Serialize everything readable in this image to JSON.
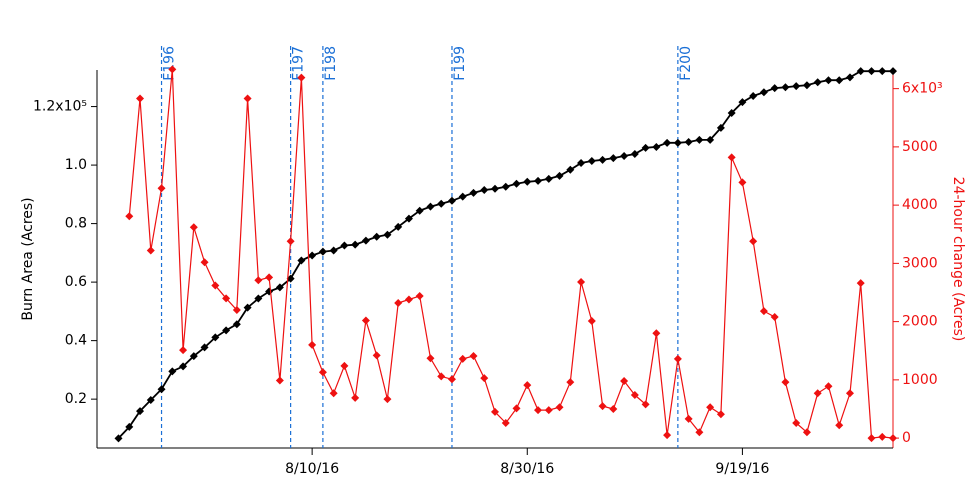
{
  "chart_data": {
    "type": "line",
    "x": [
      "7/23/16",
      "7/24/16",
      "7/25/16",
      "7/26/16",
      "7/27/16",
      "7/28/16",
      "7/29/16",
      "7/30/16",
      "7/31/16",
      "8/1/16",
      "8/2/16",
      "8/3/16",
      "8/4/16",
      "8/5/16",
      "8/6/16",
      "8/7/16",
      "8/8/16",
      "8/9/16",
      "8/10/16",
      "8/11/16",
      "8/12/16",
      "8/13/16",
      "8/14/16",
      "8/15/16",
      "8/16/16",
      "8/17/16",
      "8/18/16",
      "8/19/16",
      "8/20/16",
      "8/21/16",
      "8/22/16",
      "8/23/16",
      "8/24/16",
      "8/25/16",
      "8/26/16",
      "8/27/16",
      "8/28/16",
      "8/29/16",
      "8/30/16",
      "8/31/16",
      "9/1/16",
      "9/2/16",
      "9/3/16",
      "9/4/16",
      "9/5/16",
      "9/6/16",
      "9/7/16",
      "9/8/16",
      "9/9/16",
      "9/10/16",
      "9/11/16",
      "9/12/16",
      "9/13/16",
      "9/14/16",
      "9/15/16",
      "9/16/16",
      "9/17/16",
      "9/18/16",
      "9/19/16",
      "9/20/16",
      "9/21/16",
      "9/22/16",
      "9/23/16",
      "9/24/16",
      "9/25/16",
      "9/26/16",
      "9/27/16",
      "9/28/16",
      "9/29/16",
      "9/30/16",
      "10/1/16",
      "10/2/16",
      "10/3/16"
    ],
    "series": [
      {
        "name": "Burn Area (Acres)",
        "color": "#000000",
        "axis": "y",
        "values": [
          6600,
          10500,
          15900,
          19700,
          23400,
          29500,
          31200,
          34700,
          37700,
          41100,
          43500,
          45600,
          51300,
          54400,
          56800,
          58200,
          61200,
          67400,
          69100,
          70400,
          70800,
          72500,
          72800,
          74200,
          75500,
          76200,
          78900,
          81700,
          84400,
          85800,
          86800,
          87800,
          89200,
          90500,
          91500,
          91900,
          92600,
          93600,
          94300,
          94600,
          95300,
          96300,
          98400,
          100700,
          101400,
          101800,
          102400,
          103100,
          103800,
          105900,
          106200,
          107600,
          107600,
          107900,
          108600,
          108600,
          112700,
          117800,
          121500,
          123600,
          124900,
          126300,
          126600,
          127000,
          127300,
          128300,
          129000,
          129000,
          130000,
          132100,
          132100,
          132100,
          132100
        ]
      },
      {
        "name": "24-hour change (Acres)",
        "color": "#ee1111",
        "axis": "y2",
        "values": [
          null,
          3810,
          5830,
          3220,
          4290,
          6330,
          1510,
          3620,
          3020,
          2620,
          2400,
          2200,
          5830,
          2710,
          2760,
          990,
          3380,
          6190,
          1600,
          1130,
          770,
          1240,
          690,
          2020,
          1420,
          670,
          2320,
          2380,
          2440,
          1370,
          1060,
          1010,
          1360,
          1410,
          1030,
          450,
          260,
          510,
          910,
          480,
          480,
          530,
          960,
          2680,
          2010,
          550,
          500,
          980,
          740,
          580,
          1800,
          50,
          1360,
          330,
          100,
          530,
          410,
          4820,
          4390,
          3380,
          2180,
          2080,
          960,
          260,
          100,
          770,
          890,
          220,
          770,
          2660,
          0,
          20,
          0
        ]
      }
    ],
    "xlim": [
      "7/21/16",
      "10/3/16"
    ],
    "xticks": [
      "8/10/16",
      "8/30/16",
      "9/19/16"
    ],
    "ylim": [
      3300,
      132500
    ],
    "yticks": [
      {
        "value": 20000,
        "label": "0.2"
      },
      {
        "value": 40000,
        "label": "0.4"
      },
      {
        "value": 60000,
        "label": "0.6"
      },
      {
        "value": 80000,
        "label": "0.8"
      },
      {
        "value": 100000,
        "label": "1.0"
      },
      {
        "value": 120000,
        "label": "1.2x10⁵"
      }
    ],
    "y2lim": [
      -170,
      6320
    ],
    "y2ticks": [
      0,
      1000,
      2000,
      3000,
      4000,
      5000,
      {
        "value": 6000,
        "label": "6x10³"
      }
    ],
    "ylabel": "Burn Area (Acres)",
    "y2label": "24-hour change (Acres)",
    "annotations": [
      {
        "label": "F196",
        "x": "7/27/16"
      },
      {
        "label": "F197",
        "x": "8/8/16"
      },
      {
        "label": "F198",
        "x": "8/11/16"
      },
      {
        "label": "F199",
        "x": "8/23/16"
      },
      {
        "label": "F200",
        "x": "9/13/16"
      }
    ],
    "annotation_color": "#1a6fd6"
  }
}
